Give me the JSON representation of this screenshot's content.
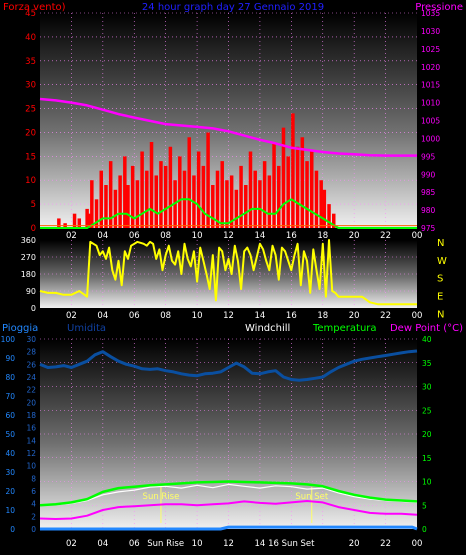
{
  "header": {
    "left_label": "Forza vento)",
    "center_label": "24 hour graph day 27 Gennaio 2019",
    "right_label": "Pressione"
  },
  "colors": {
    "wind": "#ff0000",
    "gust_avg": "#00ff00",
    "pressure": "#ff00ff",
    "direction": "#ffff00",
    "humidity": "#0a4fa0",
    "rain": "#2288ff",
    "temperature": "#00ff00",
    "dewpoint": "#ff00ff",
    "windchill": "#ffffff",
    "sun": "#ffff66"
  },
  "chart_data": [
    {
      "type": "line",
      "panel": "wind-pressure",
      "x_ticks": [
        "02",
        "04",
        "06",
        "08",
        "10",
        "12",
        "14",
        "16",
        "18",
        "20",
        "22",
        "00"
      ],
      "left_axis": {
        "ticks": [
          0,
          5,
          10,
          15,
          20,
          25,
          30,
          35,
          40,
          45
        ],
        "ylim": [
          0,
          45
        ]
      },
      "right_axis": {
        "ticks": [
          975,
          980,
          985,
          990,
          995,
          1000,
          1005,
          1010,
          1015,
          1020,
          1025,
          1030,
          1035
        ],
        "ylim": [
          975,
          1035
        ]
      },
      "series": [
        {
          "name": "Forza vento)",
          "axis": "left",
          "style": "bars",
          "x": [
            1.2,
            1.6,
            2.2,
            2.5,
            3.0,
            3.1,
            3.3,
            3.6,
            3.9,
            4.2,
            4.5,
            4.8,
            5.1,
            5.4,
            5.6,
            5.9,
            6.2,
            6.5,
            6.8,
            7.1,
            7.4,
            7.7,
            8.0,
            8.3,
            8.6,
            8.9,
            9.2,
            9.5,
            9.8,
            10.1,
            10.4,
            10.7,
            11.0,
            11.3,
            11.6,
            11.9,
            12.2,
            12.5,
            12.8,
            13.1,
            13.4,
            13.7,
            14.0,
            14.3,
            14.6,
            14.9,
            15.2,
            15.5,
            15.8,
            16.1,
            16.4,
            16.7,
            17.0,
            17.3,
            17.6,
            17.9,
            18.1,
            18.4,
            18.7
          ],
          "values": [
            2,
            1,
            3,
            2,
            4,
            3,
            10,
            6,
            12,
            9,
            14,
            8,
            11,
            15,
            9,
            13,
            10,
            16,
            12,
            18,
            11,
            14,
            13,
            17,
            10,
            15,
            12,
            19,
            11,
            16,
            13,
            20,
            9,
            12,
            14,
            10,
            11,
            8,
            13,
            9,
            16,
            12,
            10,
            14,
            11,
            18,
            13,
            21,
            15,
            24,
            17,
            19,
            14,
            16,
            12,
            10,
            8,
            5,
            3
          ]
        },
        {
          "name": "",
          "axis": "left",
          "style": "line",
          "x": [
            0,
            3.0,
            3.5,
            4.0,
            4.5,
            5.0,
            5.5,
            6.0,
            6.5,
            7.0,
            7.5,
            8.0,
            8.5,
            9.0,
            9.5,
            10.0,
            10.5,
            11.0,
            11.5,
            12.0,
            12.5,
            13.0,
            13.5,
            14.0,
            14.5,
            15.0,
            15.5,
            16.0,
            16.5,
            17.0,
            17.5,
            18.0,
            18.5,
            19.0,
            24.0
          ],
          "values": [
            0,
            0,
            1,
            2,
            2,
            3,
            3,
            2,
            3,
            4,
            3,
            4,
            5,
            6,
            6,
            5,
            3,
            2,
            1,
            1,
            2,
            3,
            4,
            4,
            3,
            3,
            5,
            6,
            5,
            4,
            3,
            2,
            1,
            0,
            0
          ]
        },
        {
          "name": "",
          "axis": "left",
          "style": "line",
          "x": [
            0,
            3.0,
            24.0
          ],
          "values": [
            0.5,
            0.5,
            0.5
          ]
        },
        {
          "name": "Pressione",
          "axis": "right",
          "style": "line",
          "x": [
            0,
            1,
            2,
            3,
            4,
            5,
            6,
            7,
            8,
            9,
            10,
            11,
            12,
            13,
            14,
            15,
            16,
            17,
            18,
            19,
            20,
            21,
            22,
            23,
            24
          ],
          "values": [
            1011,
            1010.6,
            1010,
            1009.2,
            1008,
            1006.8,
            1005.8,
            1004.9,
            1004,
            1003.6,
            1003.2,
            1002.8,
            1002,
            1000.8,
            999.6,
            998.6,
            997.4,
            996.8,
            996.2,
            995.8,
            995.6,
            995.3,
            995.2,
            995.2,
            995.2
          ]
        }
      ]
    },
    {
      "type": "line",
      "panel": "wind-direction",
      "x_ticks": [
        "02",
        "04",
        "06",
        "08",
        "10",
        "12",
        "14",
        "16",
        "18",
        "20",
        "22",
        "00"
      ],
      "left_axis": {
        "ticks": [
          0,
          90,
          180,
          270,
          360
        ],
        "ylim": [
          0,
          360
        ]
      },
      "right_axis_labels": [
        "N",
        "W",
        "S",
        "E",
        "N"
      ],
      "series": [
        {
          "name": "",
          "style": "line",
          "x": [
            0,
            0.5,
            1.0,
            1.5,
            2.0,
            2.5,
            3.0,
            3.2,
            3.4,
            3.6,
            3.8,
            4.0,
            4.2,
            4.4,
            4.6,
            4.8,
            5.0,
            5.2,
            5.4,
            5.6,
            5.8,
            6.0,
            6.2,
            6.4,
            6.6,
            6.8,
            7.0,
            7.2,
            7.4,
            7.6,
            7.8,
            8.0,
            8.2,
            8.4,
            8.6,
            8.8,
            9.0,
            9.2,
            9.4,
            9.6,
            9.8,
            10.0,
            10.2,
            10.4,
            10.6,
            10.8,
            11.0,
            11.2,
            11.4,
            11.6,
            11.8,
            12.0,
            12.2,
            12.4,
            12.6,
            12.8,
            13.0,
            13.2,
            13.4,
            13.6,
            13.8,
            14.0,
            14.2,
            14.4,
            14.6,
            14.8,
            15.0,
            15.2,
            15.4,
            15.6,
            15.8,
            16.0,
            16.2,
            16.4,
            16.6,
            16.8,
            17.0,
            17.2,
            17.4,
            17.6,
            17.8,
            18.0,
            18.2,
            18.4,
            18.6,
            18.8,
            19.0,
            19.5,
            20.0,
            20.5,
            21.0,
            21.5,
            22.0,
            22.5,
            23.0,
            23.5,
            24.0
          ],
          "values": [
            90,
            80,
            80,
            70,
            70,
            90,
            60,
            350,
            340,
            330,
            280,
            300,
            260,
            320,
            200,
            150,
            250,
            120,
            300,
            260,
            330,
            340,
            350,
            345,
            340,
            330,
            350,
            340,
            260,
            310,
            200,
            280,
            330,
            250,
            230,
            300,
            180,
            340,
            260,
            220,
            300,
            140,
            320,
            250,
            180,
            100,
            280,
            40,
            320,
            300,
            200,
            260,
            180,
            330,
            250,
            100,
            300,
            320,
            280,
            200,
            270,
            340,
            310,
            250,
            200,
            330,
            280,
            150,
            320,
            300,
            250,
            200,
            280,
            340,
            120,
            300,
            250,
            80,
            310,
            200,
            100,
            340,
            60,
            360,
            90,
            80,
            60,
            60,
            60,
            60,
            30,
            20,
            20,
            20,
            20,
            20,
            20
          ]
        }
      ]
    },
    {
      "type": "line",
      "panel": "temperature-humidity",
      "labels": {
        "rain": "Pioggia",
        "humidity": "Umidita",
        "windchill": "Windchill",
        "temperature": "Temperatura",
        "dewpoint": "Dew Point (°C)",
        "sunrise": "Sun Rise",
        "sunset": "Sun Set"
      },
      "x_ticks": [
        "02",
        "04",
        "06",
        "Sun Rise",
        "10",
        "12",
        "14",
        "16 Sun Set",
        "20",
        "22",
        "00"
      ],
      "rain_axis": {
        "ticks": [
          0,
          10,
          20,
          30,
          40,
          50,
          60,
          70,
          80,
          90,
          100
        ],
        "ylim": [
          0,
          100
        ]
      },
      "humidity_axis": {
        "ticks": [
          0,
          2,
          4,
          6,
          8,
          10,
          12,
          14,
          16,
          18,
          20,
          22,
          24,
          26,
          28,
          30
        ],
        "ylim": [
          0,
          30
        ]
      },
      "temp_axis": {
        "ticks": [
          0,
          5,
          10,
          15,
          20,
          25,
          30,
          35,
          40
        ],
        "ylim": [
          0,
          40
        ]
      },
      "sunrise_hour": 7.7,
      "sunset_hour": 17.3,
      "series": [
        {
          "name": "Umidita",
          "axis": "humidity",
          "x": [
            0,
            0.5,
            1,
            1.5,
            2,
            2.5,
            3,
            3.5,
            4,
            4.5,
            5,
            5.5,
            6,
            6.5,
            7,
            7.5,
            8,
            8.5,
            9,
            9.5,
            10,
            10.5,
            11,
            11.5,
            12,
            12.5,
            13,
            13.5,
            14,
            14.5,
            15,
            15.5,
            16,
            16.5,
            17,
            17.5,
            18,
            18.5,
            19,
            19.5,
            20,
            20.5,
            21,
            21.5,
            22,
            22.5,
            23,
            23.5,
            24
          ],
          "values": [
            26,
            25.5,
            25.6,
            25.8,
            25.5,
            26,
            26.5,
            27.5,
            28,
            27.2,
            26.5,
            26,
            25.7,
            25.3,
            25.2,
            25.3,
            25,
            24.8,
            24.5,
            24.3,
            24.2,
            24.5,
            24.6,
            24.8,
            25.5,
            26.2,
            25.6,
            24.6,
            24.5,
            24.8,
            25,
            24,
            23.6,
            23.5,
            23.6,
            23.8,
            24,
            24.8,
            25.5,
            26,
            26.5,
            26.8,
            27,
            27.2,
            27.4,
            27.6,
            27.8,
            28,
            28.1
          ]
        },
        {
          "name": "Pioggia",
          "axis": "rain",
          "x": [
            0,
            11.5,
            12,
            23.7,
            24
          ],
          "values": [
            0,
            0,
            1,
            1,
            0
          ]
        },
        {
          "name": "Temperatura",
          "axis": "temp",
          "x": [
            0,
            1,
            2,
            3,
            4,
            5,
            6,
            7,
            8,
            9,
            10,
            11,
            12,
            13,
            14,
            15,
            16,
            17,
            18,
            19,
            20,
            21,
            22,
            23,
            24
          ],
          "values": [
            5,
            5.2,
            5.6,
            6.3,
            7.8,
            8.6,
            8.9,
            9.2,
            9.4,
            9.6,
            9.8,
            9.9,
            10,
            9.9,
            9.8,
            9.7,
            9.6,
            9.4,
            9,
            8,
            7.2,
            6.6,
            6.2,
            6,
            5.8
          ]
        },
        {
          "name": "Windchill",
          "axis": "temp",
          "x": [
            0,
            1,
            2,
            3,
            4,
            5,
            6,
            7,
            8,
            9,
            10,
            11,
            12,
            13,
            14,
            15,
            16,
            17,
            18,
            19,
            20,
            21,
            22,
            23,
            24
          ],
          "values": [
            5,
            5.1,
            5.4,
            6,
            7.2,
            7.8,
            8.2,
            8.8,
            9,
            8.6,
            9.2,
            8.7,
            9.4,
            9.0,
            8.6,
            9.1,
            8.9,
            8.4,
            8.6,
            7.6,
            6.8,
            6.3,
            6,
            5.8,
            5.6
          ]
        },
        {
          "name": "Dew Point (°C)",
          "axis": "temp",
          "x": [
            0,
            1,
            2,
            3,
            4,
            5,
            6,
            7,
            8,
            9,
            10,
            11,
            12,
            13,
            14,
            15,
            16,
            17,
            18,
            19,
            20,
            21,
            22,
            23,
            24
          ],
          "values": [
            2.2,
            2.1,
            2.2,
            2.8,
            4,
            4.6,
            4.8,
            5,
            5.2,
            5.2,
            5,
            5.2,
            5.4,
            5.8,
            5.5,
            5.3,
            5.6,
            5.9,
            5.6,
            4.6,
            4,
            3.4,
            3.2,
            3.2,
            3
          ]
        }
      ]
    }
  ]
}
